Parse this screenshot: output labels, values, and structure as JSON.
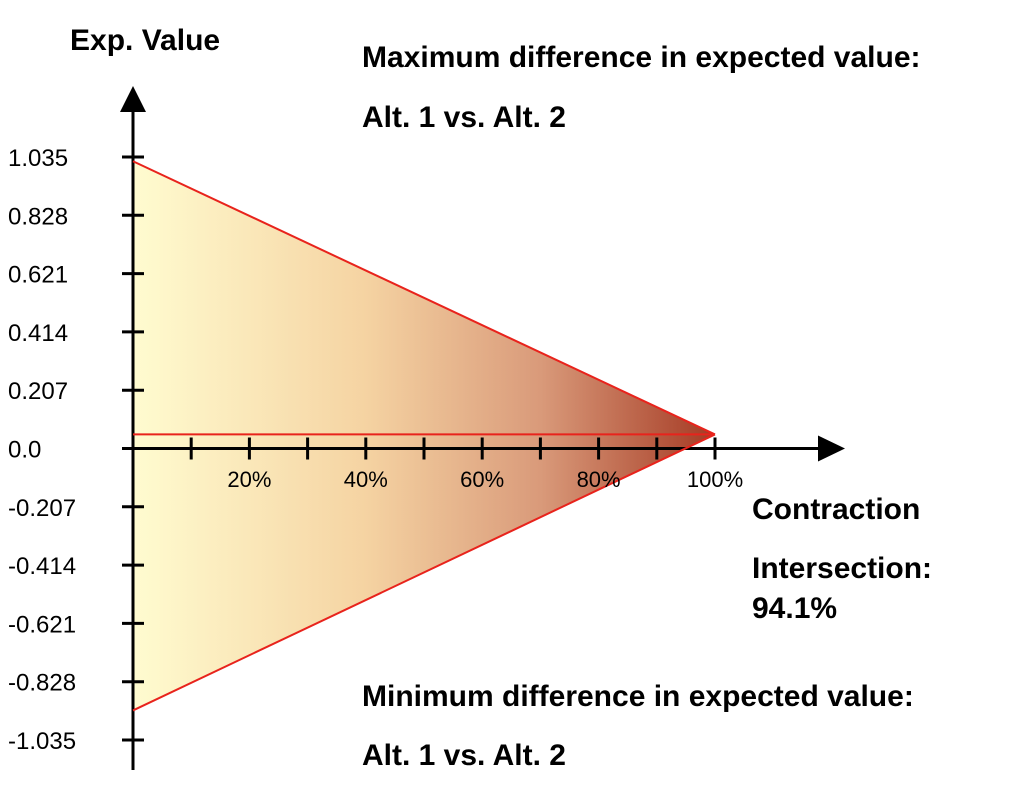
{
  "chart_data": {
    "type": "area",
    "title": "",
    "ylabel": "Exp. Value",
    "xlabel": "Contraction",
    "upper_annotation": {
      "line1": "Maximum difference in expected value:",
      "line2": "Alt. 1 vs. Alt. 2"
    },
    "lower_annotation": {
      "line1": "Minimum difference in expected value:",
      "line2": "Alt. 1 vs. Alt. 2"
    },
    "intersection": {
      "label": "Intersection:",
      "value_label": "94.1%",
      "x": 100,
      "y": 0.05
    },
    "y_ticks": [
      "1.035",
      "0.828",
      "0.621",
      "0.414",
      "0.207",
      "0.0",
      "-0.207",
      "-0.414",
      "-0.621",
      "-0.828",
      "-1.035"
    ],
    "y_tick_values": [
      1.035,
      0.828,
      0.621,
      0.414,
      0.207,
      0.0,
      -0.207,
      -0.414,
      -0.621,
      -0.828,
      -1.035
    ],
    "x_tick_values": [
      10,
      20,
      30,
      40,
      50,
      60,
      70,
      80,
      90,
      100
    ],
    "x_tick_labels": [
      {
        "value": 20,
        "label": "20%"
      },
      {
        "value": 40,
        "label": "40%"
      },
      {
        "value": 60,
        "label": "60%"
      },
      {
        "value": 80,
        "label": "80%"
      },
      {
        "value": 100,
        "label": "100%"
      }
    ],
    "xlim": [
      0,
      120
    ],
    "ylim": [
      -1.14,
      1.29
    ],
    "series": [
      {
        "x": [
          0,
          100
        ],
        "y": [
          1.02,
          0.05
        ]
      },
      {
        "x": [
          0,
          100
        ],
        "y": [
          -0.93,
          0.05
        ]
      },
      {
        "x": [
          0,
          100
        ],
        "y": [
          0.05,
          0.05
        ]
      }
    ],
    "fill_gradient": [
      "#fffcd0",
      "#f5d3a2",
      "#d99a7a",
      "#a53a24"
    ],
    "line_color": "#e8231c",
    "axis_color": "#000000"
  }
}
